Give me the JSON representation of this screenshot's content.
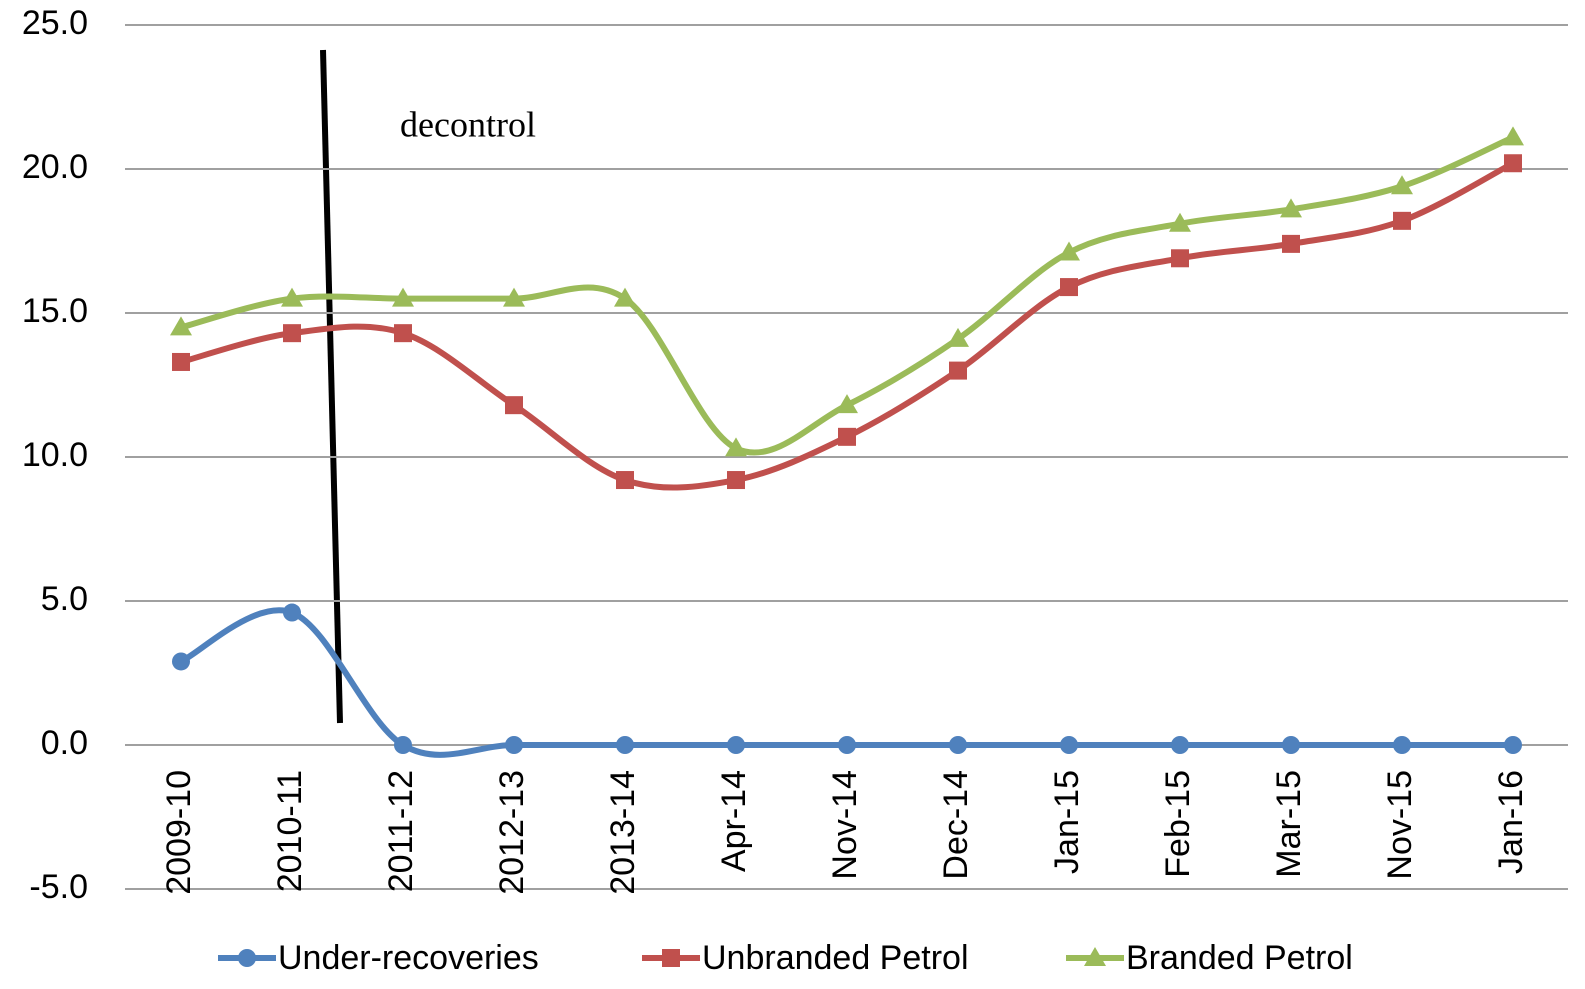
{
  "chart_data": {
    "type": "line",
    "annotation": "decontrol",
    "categories": [
      "2009-10",
      "2010-11",
      "2011-12",
      "2012-13",
      "2013-14",
      "Apr-14",
      "Nov-14",
      "Dec-14",
      "Jan-15",
      "Feb-15",
      "Mar-15",
      "Nov-15",
      "Jan-16"
    ],
    "series": [
      {
        "name": "Under-recoveries",
        "color": "#4f81bd",
        "marker": "circle",
        "values": [
          2.9,
          4.6,
          0,
          0,
          0,
          0,
          0,
          0,
          0,
          0,
          0,
          0,
          0
        ]
      },
      {
        "name": "Unbranded Petrol",
        "color": "#c0504d",
        "marker": "square",
        "values": [
          13.3,
          14.3,
          14.3,
          11.8,
          9.2,
          9.2,
          10.7,
          13.0,
          15.9,
          16.9,
          17.4,
          18.2,
          20.2
        ]
      },
      {
        "name": "Branded Petrol",
        "color": "#9bbb59",
        "marker": "triangle",
        "values": [
          14.5,
          15.5,
          15.5,
          15.5,
          15.5,
          10.3,
          11.8,
          14.1,
          17.1,
          18.1,
          18.6,
          19.4,
          21.1
        ]
      }
    ],
    "ylim": [
      -5,
      25
    ],
    "yticks": [
      {
        "value": -5,
        "label": "-5.0"
      },
      {
        "value": 0,
        "label": "0.0"
      },
      {
        "value": 5,
        "label": "5.0"
      },
      {
        "value": 10,
        "label": "10.0"
      },
      {
        "value": 15,
        "label": "15.0"
      },
      {
        "value": 20,
        "label": "20.0"
      },
      {
        "value": 25,
        "label": "25.0"
      }
    ],
    "grid": true,
    "smooth": true,
    "legend": "bottom"
  }
}
